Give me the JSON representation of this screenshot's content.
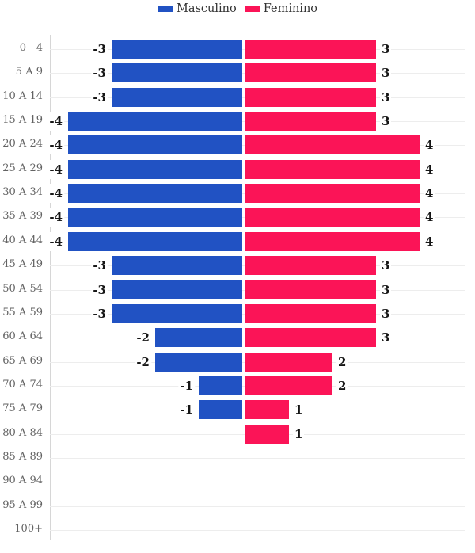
{
  "legend": {
    "items": [
      {
        "label": "Masculino",
        "color": "#2152c3"
      },
      {
        "label": "Feminino",
        "color": "#fb1457"
      }
    ]
  },
  "colors": {
    "male_bar": "#2152c3",
    "female_bar": "#fb1457",
    "grid_line": "#ededed",
    "axis_line": "#d6d6d6",
    "age_label_text": "#636363",
    "value_label_text": "#151515",
    "legend_text": "#333333",
    "background": "#ffffff"
  },
  "chart_data": {
    "type": "bar",
    "variant": "population_pyramid",
    "orientation": "horizontal",
    "title": "",
    "categories": [
      "0 - 4",
      "5 A 9",
      "10 A 14",
      "15 A 19",
      "20 A 24",
      "25 A 29",
      "30 A 34",
      "35 A 39",
      "40 A 44",
      "45 A 49",
      "50 A 54",
      "55 A 59",
      "60 A 64",
      "65 A 69",
      "70 A 74",
      "75 A 79",
      "80 A 84",
      "85 A 89",
      "90 A 94",
      "95 A 99",
      "100+"
    ],
    "series": [
      {
        "name": "Masculino",
        "color": "#2152c3",
        "values": [
          -3,
          -3,
          -3,
          -4,
          -4,
          -4,
          -4,
          -4,
          -4,
          -3,
          -3,
          -3,
          -2,
          -2,
          -1,
          -1,
          0,
          0,
          0,
          0,
          0
        ]
      },
      {
        "name": "Feminino",
        "color": "#fb1457",
        "values": [
          3,
          3,
          3,
          3,
          4,
          4,
          4,
          4,
          4,
          3,
          3,
          3,
          3,
          2,
          2,
          1,
          1,
          0,
          0,
          0,
          0
        ]
      }
    ],
    "value_labels_shown": true,
    "zero_values_hidden": true,
    "xlim": [
      -4,
      4
    ],
    "grid": "horizontal",
    "legend_position": "top-center"
  }
}
